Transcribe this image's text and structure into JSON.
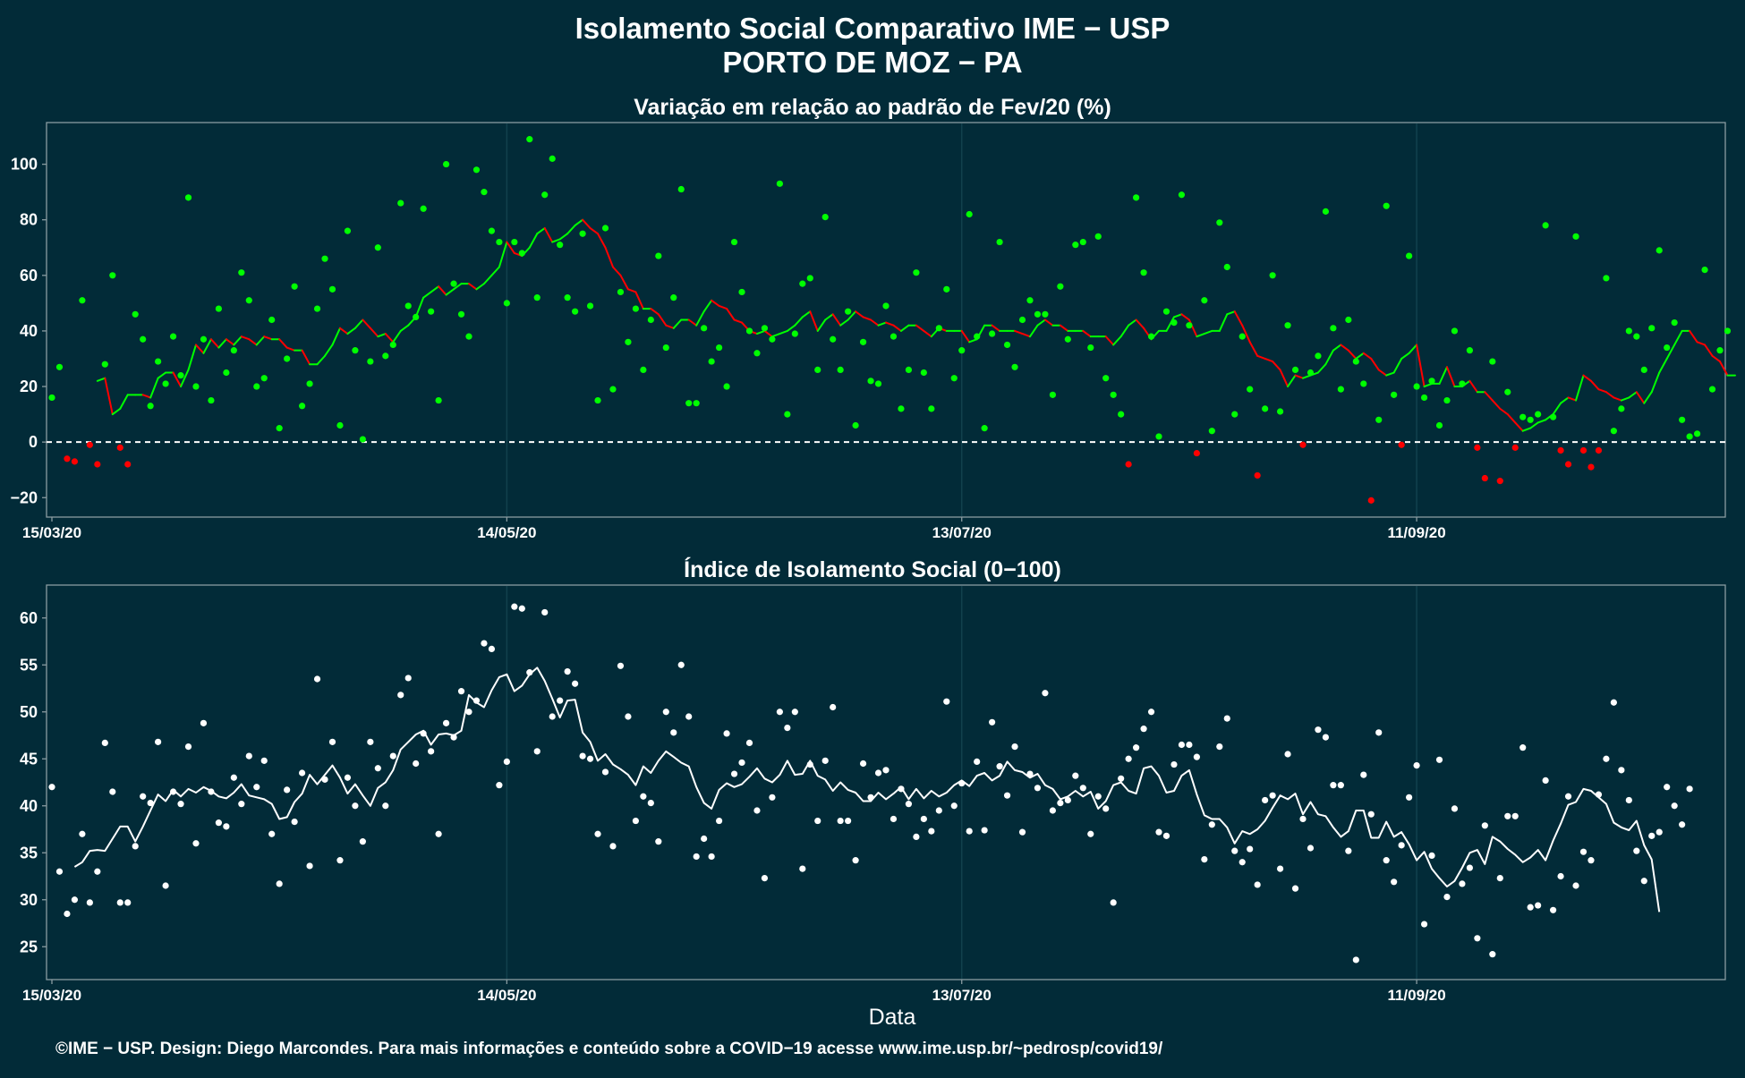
{
  "header": {
    "title": "Isolamento Social Comparativo IME − USP",
    "subtitle": "PORTO DE MOZ − PA"
  },
  "footer": {
    "credit": "©IME − USP. Design: Diego Marcondes. Para mais informações e conteúdo sobre a COVID−19 acesse www.ime.usp.br/~pedrosp/covid19/"
  },
  "colors": {
    "background": "#022b38",
    "positive": "#00ff00",
    "negative": "#ff0000",
    "index": "#ffffff",
    "frame": "#8a9ca1",
    "vgrid": "#11414d"
  },
  "chart_data": [
    {
      "type": "scatter",
      "title": "Variação em relação ao padrão de Fev/20 (%)",
      "xlabel": "",
      "ylabel": "",
      "x_start": "2020-03-15",
      "x_end": "2020-10-21",
      "x_ticks": [
        "15/03/20",
        "14/05/20",
        "13/07/20",
        "11/09/20"
      ],
      "x_tick_dates": [
        "2020-03-15",
        "2020-05-14",
        "2020-07-13",
        "2020-09-11"
      ],
      "ylim": [
        -27,
        115
      ],
      "y_ticks": [
        -20,
        0,
        20,
        40,
        60,
        80,
        100
      ],
      "reference_line": 0,
      "grid": "vertical",
      "series": [
        {
          "values": [
            16,
            27,
            -6,
            -7,
            51,
            -1,
            -8,
            28,
            60,
            -2,
            -8,
            46,
            37,
            13,
            29,
            21,
            38,
            24,
            88,
            20,
            37,
            15,
            48,
            25,
            33,
            61,
            51,
            20,
            23,
            44,
            5,
            30,
            56,
            13,
            21,
            48,
            66,
            55,
            6,
            76,
            33,
            1,
            29,
            70,
            31,
            35,
            86,
            49,
            45,
            84,
            47,
            15,
            100,
            57,
            46,
            38,
            98,
            90,
            76,
            72,
            50,
            72,
            68,
            109,
            52,
            89,
            102,
            71,
            52,
            47,
            75,
            49,
            15,
            77,
            19,
            54,
            36,
            48,
            26,
            44,
            67,
            34,
            52,
            91,
            14,
            14,
            41,
            29,
            34,
            20,
            72,
            54,
            40,
            32,
            41,
            37,
            93,
            10,
            39,
            57,
            59,
            26,
            81,
            37,
            26,
            47,
            6,
            36,
            22,
            21,
            49,
            38,
            12,
            26,
            61,
            25,
            12,
            41,
            55,
            23,
            33,
            82,
            38,
            5,
            39,
            72,
            35,
            27,
            44,
            51,
            46,
            46,
            17,
            56,
            37,
            71,
            72,
            34,
            74,
            23,
            17,
            10,
            -8,
            88,
            61,
            38,
            2,
            47,
            43,
            89,
            42,
            -4,
            51,
            4,
            79,
            63,
            10,
            38,
            19,
            -12,
            12,
            60,
            11,
            42,
            26,
            -1,
            25,
            31,
            83,
            41,
            19,
            44,
            29,
            21,
            -21,
            8,
            85,
            17,
            -1,
            67,
            20,
            16,
            22,
            6,
            15,
            40,
            21,
            33,
            -2,
            -13,
            29,
            -14,
            18,
            -2,
            9,
            8,
            10,
            78,
            9,
            -3,
            -8,
            74,
            -3,
            -9,
            -3,
            59,
            4,
            12,
            40,
            38,
            26,
            41,
            69,
            34,
            43,
            8,
            2,
            3,
            62,
            19,
            33,
            40
          ],
          "moving_average": [
            null,
            null,
            null,
            null,
            null,
            null,
            22,
            23,
            10,
            12,
            17,
            17,
            17,
            16,
            23,
            25,
            25,
            20,
            26,
            35,
            32,
            37,
            34,
            37,
            35,
            38,
            37,
            35,
            38,
            37,
            37,
            34,
            33,
            33,
            28,
            28,
            31,
            35,
            41,
            39,
            41,
            44,
            41,
            38,
            39,
            36,
            40,
            42,
            45,
            52,
            54,
            56,
            53,
            55,
            57,
            57,
            55,
            57,
            60,
            63,
            72,
            68,
            67,
            70,
            75,
            77,
            72,
            73,
            75,
            78,
            80,
            77,
            75,
            70,
            63,
            60,
            55,
            54,
            48,
            48,
            46,
            42,
            41,
            44,
            44,
            42,
            47,
            51,
            49,
            48,
            44,
            43,
            40,
            39,
            40,
            38,
            39,
            40,
            42,
            45,
            47,
            40,
            44,
            46,
            42,
            44,
            47,
            45,
            44,
            42,
            43,
            42,
            40,
            42,
            42,
            40,
            38,
            41,
            40,
            40,
            40,
            36,
            37,
            42,
            42,
            40,
            40,
            40,
            39,
            38,
            42,
            44,
            42,
            42,
            40,
            40,
            40,
            38,
            38,
            38,
            35,
            38,
            42,
            44,
            41,
            37,
            40,
            40,
            45,
            46,
            44,
            38,
            39,
            40,
            40,
            46,
            47,
            42,
            36,
            31,
            30,
            29,
            26,
            20,
            24,
            23,
            24,
            25,
            28,
            33,
            35,
            33,
            30,
            32,
            30,
            26,
            24,
            25,
            30,
            32,
            35,
            20,
            21,
            21,
            27,
            20,
            20,
            22,
            18,
            18,
            15,
            12,
            10,
            7,
            4,
            5,
            7,
            8,
            10,
            14,
            16,
            15,
            24,
            22,
            19,
            18,
            16,
            15,
            16,
            18,
            14,
            18,
            25,
            30,
            35,
            40,
            40,
            36,
            35,
            31,
            29,
            24,
            24
          ]
        }
      ]
    },
    {
      "type": "scatter",
      "title": "Índice de Isolamento Social (0−100)",
      "xlabel": "Data",
      "ylabel": "",
      "x_start": "2020-03-15",
      "x_end": "2020-10-21",
      "x_ticks": [
        "15/03/20",
        "14/05/20",
        "13/07/20",
        "11/09/20"
      ],
      "x_tick_dates": [
        "2020-03-15",
        "2020-05-14",
        "2020-07-13",
        "2020-09-11"
      ],
      "ylim": [
        21.5,
        63.5
      ],
      "y_ticks": [
        25,
        30,
        35,
        40,
        45,
        50,
        55,
        60
      ],
      "grid": "vertical",
      "series": [
        {
          "values": [
            42,
            33,
            28.5,
            30,
            37,
            29.7,
            33,
            46.7,
            41.5,
            29.7,
            29.7,
            35.7,
            41,
            40.3,
            46.8,
            31.5,
            41.5,
            40.2,
            46.3,
            36,
            48.8,
            41.5,
            38.2,
            37.8,
            43,
            40.2,
            45.3,
            42,
            44.8,
            37,
            31.7,
            41.7,
            38.3,
            43.5,
            33.6,
            53.5,
            42.8,
            46.8,
            34.2,
            43,
            40,
            36.2,
            46.8,
            44,
            40,
            45.3,
            51.8,
            53.6,
            44.5,
            47.7,
            45.8,
            37,
            48.8,
            47.3,
            52.2,
            50,
            51.2,
            57.3,
            56.7,
            42.2,
            44.7,
            61.2,
            61,
            54.2,
            45.8,
            60.6,
            49.5,
            51.2,
            54.3,
            53,
            45.3,
            45,
            37,
            43.6,
            35.7,
            54.9,
            49.5,
            38.4,
            41,
            40.3,
            36.2,
            50,
            47.8,
            55,
            49.5,
            34.6,
            36.5,
            34.6,
            38.4,
            47.7,
            43.4,
            44.6,
            46.7,
            39.5,
            32.3,
            40.9,
            50,
            48.3,
            50,
            33.3,
            44.4,
            38.4,
            44.8,
            50.5,
            38.4,
            38.4,
            34.2,
            44.5,
            40.9,
            43.5,
            43.8,
            38.6,
            41.8,
            40.2,
            36.7,
            38.6,
            37.3,
            39.5,
            51.1,
            40,
            42.4,
            37.3,
            44.7,
            37.4,
            48.9,
            44.2,
            41.1,
            46.3,
            37.2,
            43.4,
            41.9,
            52,
            39.5,
            40.3,
            40.6,
            43.2,
            41.9,
            37,
            41,
            39.7,
            29.7,
            42.9,
            45,
            46.2,
            48.2,
            50,
            37.2,
            36.8,
            44.4,
            46.5,
            46.5,
            45.2,
            34.3,
            38,
            46.3,
            49.3,
            35.2,
            34,
            35.4,
            31.6,
            40.6,
            41.1,
            33.3,
            45.5,
            31.2,
            38.6,
            35.5,
            48.1,
            47.3,
            42.2,
            42.2,
            35.2,
            23.6,
            43.3,
            39.1,
            47.8,
            34.2,
            31.9,
            35.8,
            40.9,
            44.3,
            27.4,
            34.7,
            44.9,
            30.3,
            39.7,
            31.7,
            33.4,
            25.9,
            37.9,
            24.2,
            32.3,
            38.9,
            38.9,
            46.2,
            29.2,
            29.4,
            42.7,
            28.9,
            32.5,
            41,
            31.5,
            35.1,
            34.2,
            41.2,
            45,
            51,
            43.8,
            40.6,
            35.2,
            32,
            36.8,
            37.2,
            42,
            40,
            38,
            41.8
          ],
          "moving_average": [
            null,
            null,
            null,
            33.5,
            34,
            35.2,
            35.3,
            35.2,
            36.5,
            37.8,
            37.8,
            36.2,
            37.8,
            39.5,
            41.2,
            40.5,
            41.7,
            41,
            41.8,
            41.4,
            42,
            41.6,
            41,
            40.8,
            41.4,
            42.3,
            41.1,
            40.9,
            40.7,
            40.2,
            38.6,
            38.8,
            40.4,
            41.3,
            43.3,
            42.3,
            43.3,
            44.3,
            43,
            41.3,
            42.3,
            41.1,
            40,
            41.9,
            42.5,
            43.8,
            46,
            46.8,
            47.6,
            48,
            46.5,
            47.6,
            47.7,
            47.5,
            48,
            51.8,
            51,
            50.5,
            52.3,
            53.7,
            54,
            52.2,
            52.8,
            54,
            54.7,
            53.3,
            51.4,
            49.4,
            51.2,
            51.3,
            47.8,
            46.8,
            44.8,
            45.5,
            44.4,
            43.9,
            43.3,
            42.2,
            44.2,
            43.5,
            44.8,
            45.8,
            45.2,
            44.6,
            44.2,
            42,
            40.3,
            39.7,
            41.7,
            42.4,
            42,
            42.3,
            43.1,
            44,
            42.9,
            42.5,
            43.3,
            44.8,
            43.3,
            43.4,
            44.8,
            43.2,
            42.8,
            41.6,
            42.5,
            41.7,
            41.4,
            40.5,
            40.5,
            41.4,
            40.7,
            41.3,
            42,
            40.7,
            41.8,
            40.8,
            41.6,
            41,
            41.4,
            42.2,
            42.7,
            42.1,
            43.2,
            43.5,
            42.7,
            43.2,
            44.7,
            43.8,
            43.6,
            43,
            43.4,
            42.2,
            41.8,
            40.7,
            41,
            41.6,
            41,
            41.5,
            39.7,
            40.5,
            42.2,
            42.5,
            41.6,
            41.3,
            44,
            44.2,
            43.2,
            41.4,
            41.6,
            43.2,
            43.8,
            41.2,
            39,
            38.6,
            38.6,
            37.7,
            36,
            37.3,
            37,
            37.5,
            38.4,
            39.8,
            41.1,
            40.7,
            41.3,
            39.1,
            40.4,
            39.1,
            38.9,
            37.7,
            36.7,
            37.3,
            39.5,
            39.5,
            36.6,
            36.6,
            38.3,
            36.7,
            37.2,
            35.9,
            34.2,
            35.1,
            33.3,
            32.3,
            31.4,
            32,
            33.4,
            35,
            35.3,
            33.8,
            36.7,
            36.2,
            35.4,
            34.8,
            34,
            34.5,
            35.3,
            34.2,
            36.3,
            38.1,
            40.1,
            40.4,
            41.8,
            41.6,
            40.9,
            40.2,
            38.2,
            37.7,
            37.4,
            38.4,
            35.8,
            34.3,
            28.7
          ]
        }
      ]
    }
  ]
}
